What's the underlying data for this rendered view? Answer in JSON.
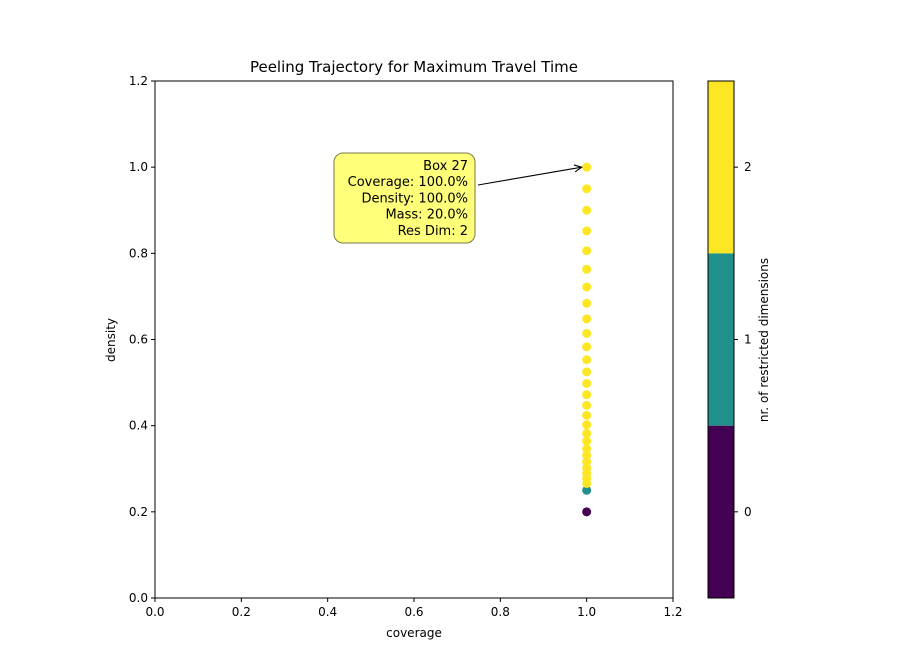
{
  "chart_data": {
    "type": "scatter",
    "title": "Peeling Trajectory for Maximum Travel Time",
    "xlabel": "coverage",
    "ylabel": "density",
    "xlim": [
      0.0,
      1.2
    ],
    "ylim": [
      0.0,
      1.2
    ],
    "xticks": [
      "0.0",
      "0.2",
      "0.4",
      "0.6",
      "0.8",
      "1.0",
      "1.2"
    ],
    "yticks": [
      "0.0",
      "0.2",
      "0.4",
      "0.6",
      "0.8",
      "1.0",
      "1.2"
    ],
    "grid": false,
    "colorbar": {
      "label": "nr. of restricted dimensions",
      "ticks": [
        "0",
        "1",
        "2"
      ],
      "levels": [
        0,
        1,
        2
      ],
      "colors": [
        "#440154",
        "#21908d",
        "#fde725"
      ]
    },
    "points": [
      {
        "x": 1.0,
        "y": 0.2,
        "res_dim": 0
      },
      {
        "x": 1.0,
        "y": 0.25,
        "res_dim": 1
      },
      {
        "x": 1.0,
        "y": 0.266,
        "res_dim": 2
      },
      {
        "x": 1.0,
        "y": 0.278,
        "res_dim": 2
      },
      {
        "x": 1.0,
        "y": 0.29,
        "res_dim": 2
      },
      {
        "x": 1.0,
        "y": 0.302,
        "res_dim": 2
      },
      {
        "x": 1.0,
        "y": 0.316,
        "res_dim": 2
      },
      {
        "x": 1.0,
        "y": 0.331,
        "res_dim": 2
      },
      {
        "x": 1.0,
        "y": 0.346,
        "res_dim": 2
      },
      {
        "x": 1.0,
        "y": 0.364,
        "res_dim": 2
      },
      {
        "x": 1.0,
        "y": 0.382,
        "res_dim": 2
      },
      {
        "x": 1.0,
        "y": 0.402,
        "res_dim": 2
      },
      {
        "x": 1.0,
        "y": 0.424,
        "res_dim": 2
      },
      {
        "x": 1.0,
        "y": 0.447,
        "res_dim": 2
      },
      {
        "x": 1.0,
        "y": 0.472,
        "res_dim": 2
      },
      {
        "x": 1.0,
        "y": 0.498,
        "res_dim": 2
      },
      {
        "x": 1.0,
        "y": 0.525,
        "res_dim": 2
      },
      {
        "x": 1.0,
        "y": 0.553,
        "res_dim": 2
      },
      {
        "x": 1.0,
        "y": 0.583,
        "res_dim": 2
      },
      {
        "x": 1.0,
        "y": 0.614,
        "res_dim": 2
      },
      {
        "x": 1.0,
        "y": 0.648,
        "res_dim": 2
      },
      {
        "x": 1.0,
        "y": 0.684,
        "res_dim": 2
      },
      {
        "x": 1.0,
        "y": 0.722,
        "res_dim": 2
      },
      {
        "x": 1.0,
        "y": 0.763,
        "res_dim": 2
      },
      {
        "x": 1.0,
        "y": 0.806,
        "res_dim": 2
      },
      {
        "x": 1.0,
        "y": 0.852,
        "res_dim": 2
      },
      {
        "x": 1.0,
        "y": 0.9,
        "res_dim": 2
      },
      {
        "x": 1.0,
        "y": 0.95,
        "res_dim": 2
      },
      {
        "x": 1.0,
        "y": 1.0,
        "res_dim": 2
      }
    ],
    "annotation": {
      "lines": [
        "Box 27",
        "Coverage: 100.0%",
        "Density: 100.0%",
        "Mass: 20.0%",
        "Res Dim: 2"
      ],
      "target": {
        "x": 1.0,
        "y": 1.0
      },
      "box_color": "#ffff7a"
    }
  }
}
